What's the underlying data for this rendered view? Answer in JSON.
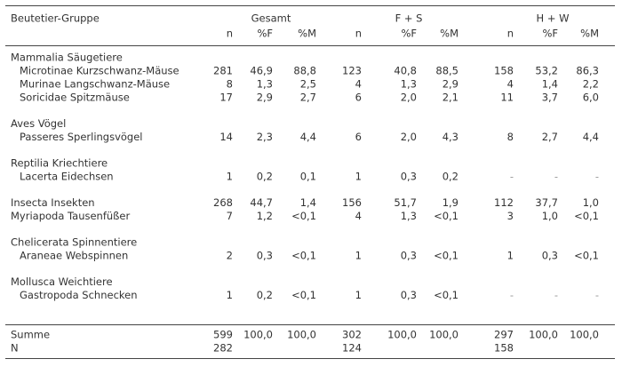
{
  "header": {
    "title": "Beutetier-Gruppe",
    "groups": [
      "Gesamt",
      "F + S",
      "H + W"
    ],
    "columns": [
      "n",
      "%F",
      "%M",
      "n",
      "%F",
      "%M",
      "n",
      "%F",
      "%M"
    ]
  },
  "sections": [
    {
      "heading": "Mammalia Säugetiere",
      "rows": [
        {
          "label": "Microtinae Kurzschwanz-Mäuse",
          "cells": [
            "281",
            "46,9",
            "88,8",
            "123",
            "40,8",
            "88,5",
            "158",
            "53,2",
            "86,3"
          ]
        },
        {
          "label": "Murinae Langschwanz-Mäuse",
          "cells": [
            "8",
            "1,3",
            "2,5",
            "4",
            "1,3",
            "2,9",
            "4",
            "1,4",
            "2,2"
          ]
        },
        {
          "label": "Soricidae Spitzmäuse",
          "cells": [
            "17",
            "2,9",
            "2,7",
            "6",
            "2,0",
            "2,1",
            "11",
            "3,7",
            "6,0"
          ]
        }
      ]
    },
    {
      "heading": "Aves Vögel",
      "rows": [
        {
          "label": "Passeres Sperlingsvögel",
          "cells": [
            "14",
            "2,3",
            "4,4",
            "6",
            "2,0",
            "4,3",
            "8",
            "2,7",
            "4,4"
          ]
        }
      ]
    },
    {
      "heading": "Reptilia Kriechtiere",
      "rows": [
        {
          "label": "Lacerta Eidechsen",
          "cells": [
            "1",
            "0,2",
            "0,1",
            "1",
            "0,3",
            "0,2",
            "-",
            "-",
            "-"
          ]
        }
      ]
    },
    {
      "rows": [
        {
          "label": "Insecta Insekten",
          "cells": [
            "268",
            "44,7",
            "1,4",
            "156",
            "51,7",
            "1,9",
            "112",
            "37,7",
            "1,0"
          ]
        },
        {
          "label": "Myriapoda Tausenfüßer",
          "cells": [
            "7",
            "1,2",
            "<0,1",
            "4",
            "1,3",
            "<0,1",
            "3",
            "1,0",
            "<0,1"
          ]
        }
      ]
    },
    {
      "heading": "Chelicerata Spinnentiere",
      "rows": [
        {
          "label": "Araneae Webspinnen",
          "cells": [
            "2",
            "0,3",
            "<0,1",
            "1",
            "0,3",
            "<0,1",
            "1",
            "0,3",
            "<0,1"
          ]
        }
      ]
    },
    {
      "heading": "Mollusca Weichtiere",
      "rows": [
        {
          "label": "Gastropoda Schnecken",
          "cells": [
            "1",
            "0,2",
            "<0,1",
            "1",
            "0,3",
            "<0,1",
            "-",
            "-",
            "-"
          ]
        }
      ]
    }
  ],
  "footer": [
    {
      "label": "Summe",
      "cells": [
        "599",
        "100,0",
        "100,0",
        "302",
        "100,0",
        "100,0",
        "297",
        "100,0",
        "100,0"
      ]
    },
    {
      "label": "N",
      "cells": [
        "282",
        null,
        null,
        "124",
        null,
        null,
        "158",
        null,
        null
      ]
    }
  ]
}
